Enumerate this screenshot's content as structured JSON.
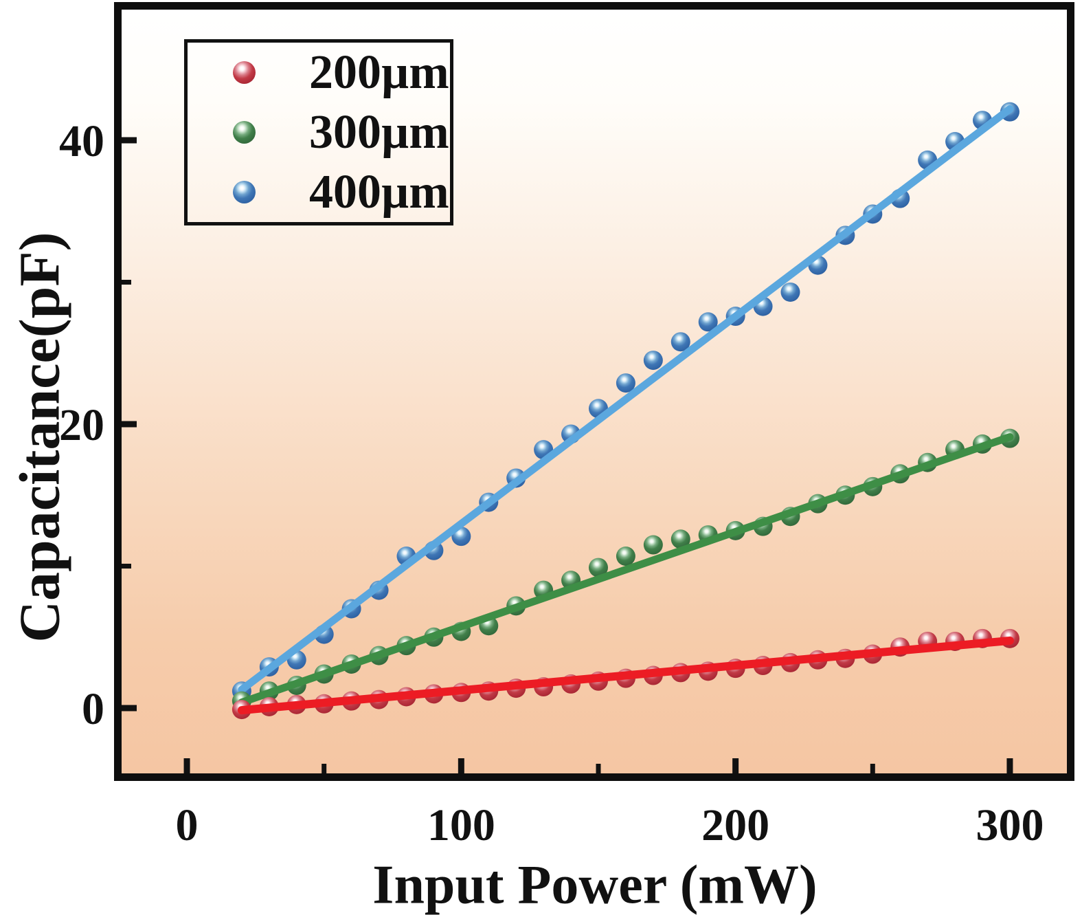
{
  "figure": {
    "xlabel": "Input Power (mW)",
    "ylabel": "Capacitance(pF)"
  },
  "legend": {
    "position": "upper left",
    "items": [
      {
        "label": "200µm",
        "color_key": "red"
      },
      {
        "label": "300µm",
        "color_key": "green"
      },
      {
        "label": "400µm",
        "color_key": "blue"
      }
    ]
  },
  "chart_data": {
    "type": "scatter",
    "title": "",
    "xlabel": "Input Power (mW)",
    "ylabel": "Capacitance(pF)",
    "grid": false,
    "legend_position": "upper left",
    "xlim": [
      -23.8,
      320.8
    ],
    "ylim": [
      -4.6,
      49.2
    ],
    "xticks": {
      "major": [
        0,
        100,
        200,
        300
      ],
      "minor": [
        50,
        150,
        250
      ]
    },
    "yticks": {
      "major": [
        0,
        20,
        40
      ],
      "minor": [
        10,
        30
      ]
    },
    "background_gradient": [
      "#ffffff",
      "#fffdf9",
      "#fcefe3",
      "#f9dcc4",
      "#f6ccab",
      "#f5c6a3"
    ],
    "x": [
      20,
      30,
      40,
      50,
      60,
      70,
      80,
      90,
      100,
      110,
      120,
      130,
      140,
      150,
      160,
      170,
      180,
      190,
      200,
      210,
      220,
      230,
      240,
      250,
      260,
      270,
      280,
      290,
      300
    ],
    "series": [
      {
        "name": "400µm",
        "key": "blue",
        "marker_color": "#3f76b5",
        "line_color": "#5ba7de",
        "line_width": 11,
        "values": [
          1.2,
          2.9,
          3.4,
          5.2,
          7.0,
          8.3,
          10.7,
          11.1,
          12.1,
          14.5,
          16.2,
          18.2,
          19.3,
          21.1,
          22.9,
          24.5,
          25.8,
          27.2,
          27.6,
          28.3,
          29.3,
          31.2,
          33.3,
          34.8,
          35.9,
          38.6,
          39.9,
          41.4,
          42.0
        ],
        "fit_line": {
          "x1": 20,
          "y1": 1.3,
          "x2": 300,
          "y2": 42.2
        }
      },
      {
        "name": "300µm",
        "key": "green",
        "marker_color": "#417f4a",
        "line_color": "#3e8e46",
        "line_width": 11,
        "values": [
          0.5,
          1.2,
          1.6,
          2.4,
          3.1,
          3.7,
          4.4,
          5.0,
          5.4,
          5.8,
          7.2,
          8.3,
          9.0,
          9.9,
          10.7,
          11.5,
          11.9,
          12.2,
          12.5,
          12.8,
          13.5,
          14.4,
          15.0,
          15.6,
          16.5,
          17.3,
          18.2,
          18.6,
          19.0
        ],
        "fit_line": {
          "x1": 20,
          "y1": 0.4,
          "x2": 300,
          "y2": 19.1
        }
      },
      {
        "name": "200µm",
        "key": "red",
        "marker_color": "#c23a46",
        "line_color": "#ec1c24",
        "line_width": 12,
        "values": [
          -0.1,
          0.1,
          0.25,
          0.3,
          0.5,
          0.6,
          0.8,
          1.0,
          1.1,
          1.2,
          1.4,
          1.5,
          1.7,
          1.9,
          2.1,
          2.3,
          2.5,
          2.6,
          2.8,
          3.0,
          3.2,
          3.4,
          3.5,
          3.8,
          4.3,
          4.7,
          4.7,
          4.9,
          4.9
        ],
        "fit_line": {
          "x1": 20,
          "y1": -0.15,
          "x2": 300,
          "y2": 4.75
        }
      }
    ]
  }
}
